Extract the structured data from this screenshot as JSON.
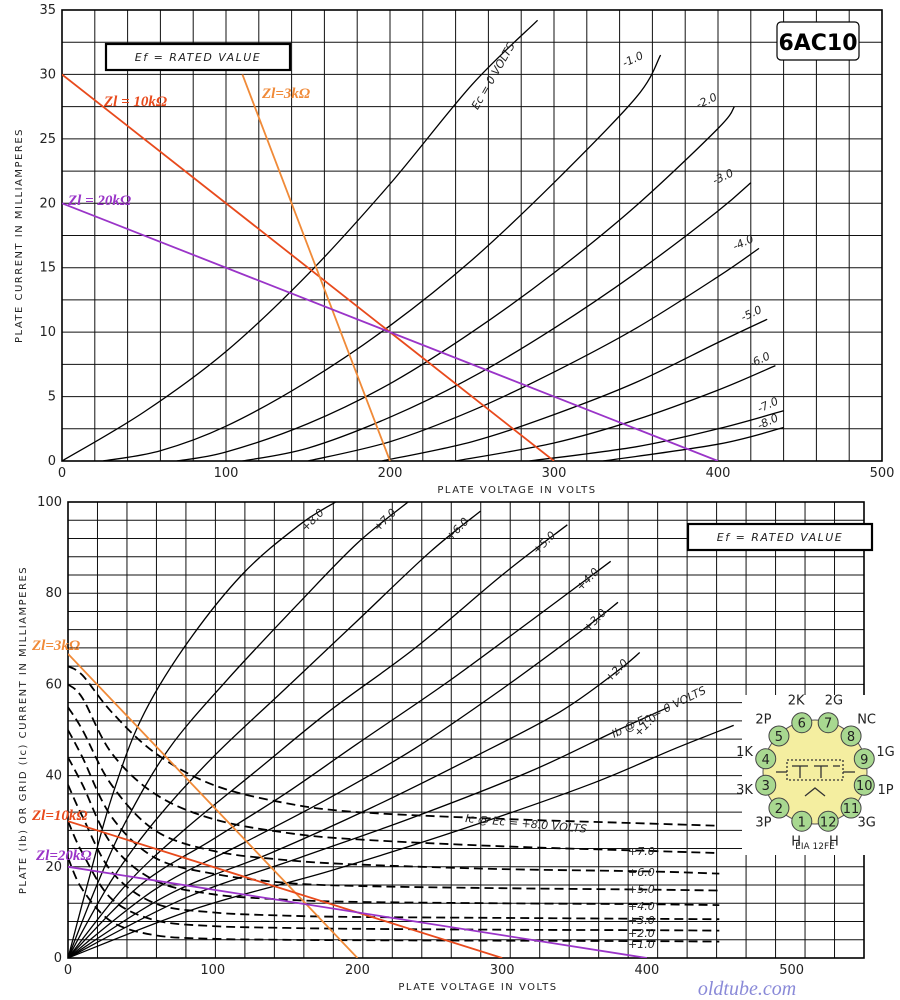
{
  "tube_name": "6AC10",
  "watermark": "oldtube.com",
  "base_diagram": {
    "caption": "EIA 12FE",
    "pins": [
      {
        "n": "1",
        "label": "H"
      },
      {
        "n": "2",
        "label": "3P"
      },
      {
        "n": "3",
        "label": "3K"
      },
      {
        "n": "4",
        "label": "1K"
      },
      {
        "n": "5",
        "label": "2P"
      },
      {
        "n": "6",
        "label": "2K"
      },
      {
        "n": "7",
        "label": "2G"
      },
      {
        "n": "8",
        "label": "NC"
      },
      {
        "n": "9",
        "label": "1G"
      },
      {
        "n": "10",
        "label": "1P"
      },
      {
        "n": "11",
        "label": "3G"
      },
      {
        "n": "12",
        "label": "H"
      }
    ],
    "pin_color": "#a8d890",
    "envelope_color": "#f4eea0"
  },
  "chart_data": [
    {
      "type": "line",
      "note_box": "Ef = RATED VALUE",
      "xlabel": "PLATE VOLTAGE IN VOLTS",
      "ylabel": "PLATE CURRENT IN MILLIAMPERES",
      "xlim": [
        0,
        500
      ],
      "ylim": [
        0,
        35
      ],
      "xticks": [
        0,
        100,
        200,
        300,
        400,
        500
      ],
      "yticks": [
        0,
        5,
        10,
        15,
        20,
        25,
        30,
        35
      ],
      "grid": true,
      "series": [
        {
          "name": "Ec = 0 VOLTS",
          "x": [
            0,
            50,
            100,
            150,
            200,
            250,
            290
          ],
          "y": [
            0,
            3.8,
            8.5,
            14.5,
            21.5,
            29.2,
            34.2
          ]
        },
        {
          "name": "-1.0",
          "x": [
            25,
            60,
            100,
            150,
            200,
            250,
            300,
            350,
            365
          ],
          "y": [
            0,
            0.8,
            2.7,
            6.2,
            10.5,
            15.6,
            21.6,
            28.2,
            31.5
          ]
        },
        {
          "name": "-2.0",
          "x": [
            70,
            100,
            150,
            200,
            250,
            300,
            350,
            400,
            410
          ],
          "y": [
            0,
            0.7,
            2.9,
            6,
            10,
            14.6,
            19.8,
            25.8,
            27.5
          ]
        },
        {
          "name": "-3.0",
          "x": [
            110,
            150,
            200,
            250,
            300,
            350,
            400,
            420
          ],
          "y": [
            0,
            1,
            3.4,
            6.5,
            10.3,
            14.6,
            19.4,
            21.6
          ]
        },
        {
          "name": "-4.0",
          "x": [
            150,
            200,
            250,
            300,
            350,
            400,
            425
          ],
          "y": [
            0,
            1.5,
            3.9,
            6.9,
            10.3,
            14.3,
            16.5
          ]
        },
        {
          "name": "-5.0",
          "x": [
            195,
            250,
            300,
            350,
            400,
            430
          ],
          "y": [
            0,
            1.5,
            3.6,
            6.1,
            9.2,
            11
          ]
        },
        {
          "name": "-6.0",
          "x": [
            240,
            300,
            350,
            400,
            435
          ],
          "y": [
            0,
            1.4,
            3.2,
            5.5,
            7.4
          ]
        },
        {
          "name": "-7.0",
          "x": [
            285,
            350,
            400,
            440
          ],
          "y": [
            0,
            1.1,
            2.5,
            3.9
          ]
        },
        {
          "name": "-8.0",
          "x": [
            330,
            400,
            440
          ],
          "y": [
            0,
            1.3,
            2.6
          ]
        }
      ],
      "load_lines": [
        {
          "name": "Zl = 10kΩ",
          "x": [
            0,
            300
          ],
          "y": [
            30,
            0
          ],
          "color": "#e84a1c"
        },
        {
          "name": "Zl=3kΩ",
          "x": [
            110,
            200
          ],
          "y": [
            30,
            0
          ],
          "color": "#f08a38"
        },
        {
          "name": "Zl = 20kΩ",
          "x": [
            0,
            400
          ],
          "y": [
            20,
            0
          ],
          "color": "#9a34c8"
        }
      ]
    },
    {
      "type": "line",
      "note_box": "Ef = RATED VALUE",
      "xlabel": "PLATE VOLTAGE IN VOLTS",
      "ylabel": "PLATE (Ib) OR GRID (Ic) CURRENT IN MILLIAMPERES",
      "xlim": [
        0,
        550
      ],
      "ylim": [
        0,
        100
      ],
      "xticks": [
        0,
        100,
        200,
        300,
        400,
        500
      ],
      "yticks": [
        0,
        20,
        40,
        60,
        80,
        100
      ],
      "grid": true,
      "plate_series": [
        {
          "name": "+8.0",
          "x": [
            0,
            15,
            30,
            50,
            80,
            120,
            160,
            185
          ],
          "y": [
            0,
            18,
            35,
            52,
            68,
            84,
            95,
            100
          ]
        },
        {
          "name": "+7.0",
          "x": [
            0,
            20,
            40,
            70,
            110,
            160,
            200,
            235
          ],
          "y": [
            0,
            16,
            30,
            46,
            61,
            78,
            91,
            100
          ]
        },
        {
          "name": "+6.0",
          "x": [
            0,
            30,
            60,
            100,
            150,
            200,
            250,
            285
          ],
          "y": [
            0,
            17,
            30,
            44,
            59,
            74,
            89,
            98
          ]
        },
        {
          "name": "+5.0",
          "x": [
            0,
            40,
            80,
            130,
            180,
            240,
            300,
            345
          ],
          "y": [
            0,
            16,
            28,
            41,
            54,
            68,
            84,
            95
          ]
        },
        {
          "name": "+4.0",
          "x": [
            0,
            50,
            100,
            150,
            200,
            260,
            320,
            375
          ],
          "y": [
            0,
            16,
            26,
            36,
            47,
            60,
            74,
            87
          ]
        },
        {
          "name": "+3.0",
          "x": [
            0,
            60,
            120,
            180,
            240,
            300,
            360,
            380
          ],
          "y": [
            0,
            15,
            25,
            35,
            46,
            59,
            73,
            78
          ]
        },
        {
          "name": "+2.0",
          "x": [
            0,
            70,
            140,
            210,
            280,
            340,
            380,
            395
          ],
          "y": [
            0,
            14,
            23,
            33,
            44,
            54,
            63,
            67
          ]
        },
        {
          "name": "+1.0",
          "x": [
            0,
            80,
            160,
            240,
            320,
            380,
            415
          ],
          "y": [
            0,
            13,
            22,
            31,
            41,
            50,
            55
          ]
        },
        {
          "name": "Ib @ Ec = 0 VOLTS",
          "x": [
            0,
            90,
            180,
            270,
            360,
            420,
            460
          ],
          "y": [
            0,
            11,
            19,
            28,
            38,
            46,
            51
          ]
        }
      ],
      "grid_series": [
        {
          "name": "Ic @ Ec = +8.0 VOLTS",
          "x": [
            0,
            10,
            30,
            60,
            100,
            150,
            200,
            300,
            400,
            450
          ],
          "y": [
            64,
            62,
            54,
            45,
            38,
            34,
            32,
            30.5,
            29.5,
            29
          ]
        },
        {
          "name": "+7.0",
          "x": [
            0,
            10,
            30,
            60,
            100,
            150,
            200,
            300,
            400,
            450
          ],
          "y": [
            60,
            57,
            45,
            36,
            30.5,
            27.5,
            26,
            24.5,
            23.5,
            23
          ]
        },
        {
          "name": "+6.0",
          "x": [
            0,
            10,
            30,
            60,
            100,
            150,
            200,
            300,
            400,
            450
          ],
          "y": [
            55,
            50,
            38,
            28,
            23.5,
            21.5,
            20.5,
            19.5,
            19,
            18.5
          ]
        },
        {
          "name": "+5.0",
          "x": [
            0,
            10,
            30,
            60,
            100,
            150,
            200,
            300,
            400,
            450
          ],
          "y": [
            50,
            44,
            31,
            22,
            18.5,
            16.5,
            15.8,
            15.3,
            15,
            14.8
          ]
        },
        {
          "name": "+4.0",
          "x": [
            0,
            10,
            30,
            60,
            100,
            150,
            200,
            300,
            400,
            450
          ],
          "y": [
            44,
            38,
            25,
            17,
            14,
            12.8,
            12.3,
            12,
            11.8,
            11.6
          ]
        },
        {
          "name": "+3.0",
          "x": [
            0,
            10,
            30,
            60,
            100,
            150,
            200,
            300,
            400,
            450
          ],
          "y": [
            38,
            31,
            19,
            12,
            10,
            9.3,
            9,
            8.8,
            8.6,
            8.5
          ]
        },
        {
          "name": "+2.0",
          "x": [
            0,
            10,
            30,
            60,
            100,
            150,
            200,
            300,
            400,
            450
          ],
          "y": [
            30,
            23,
            13,
            8.3,
            7,
            6.6,
            6.4,
            6.2,
            6.1,
            6
          ]
        },
        {
          "name": "+1.0",
          "x": [
            0,
            10,
            30,
            60,
            100,
            150,
            200,
            300,
            400,
            450
          ],
          "y": [
            22,
            15,
            8,
            5,
            4.2,
            4,
            3.9,
            3.8,
            3.7,
            3.6
          ]
        }
      ],
      "load_lines": [
        {
          "name": "Zl=3kΩ",
          "x": [
            0,
            200
          ],
          "y": [
            66.7,
            0
          ],
          "color": "#f08a38"
        },
        {
          "name": "Zl=10kΩ",
          "x": [
            0,
            300
          ],
          "y": [
            30,
            0
          ],
          "color": "#e84a1c"
        },
        {
          "name": "Zl=20kΩ",
          "x": [
            0,
            400
          ],
          "y": [
            20,
            0
          ],
          "color": "#9a34c8"
        }
      ]
    }
  ]
}
